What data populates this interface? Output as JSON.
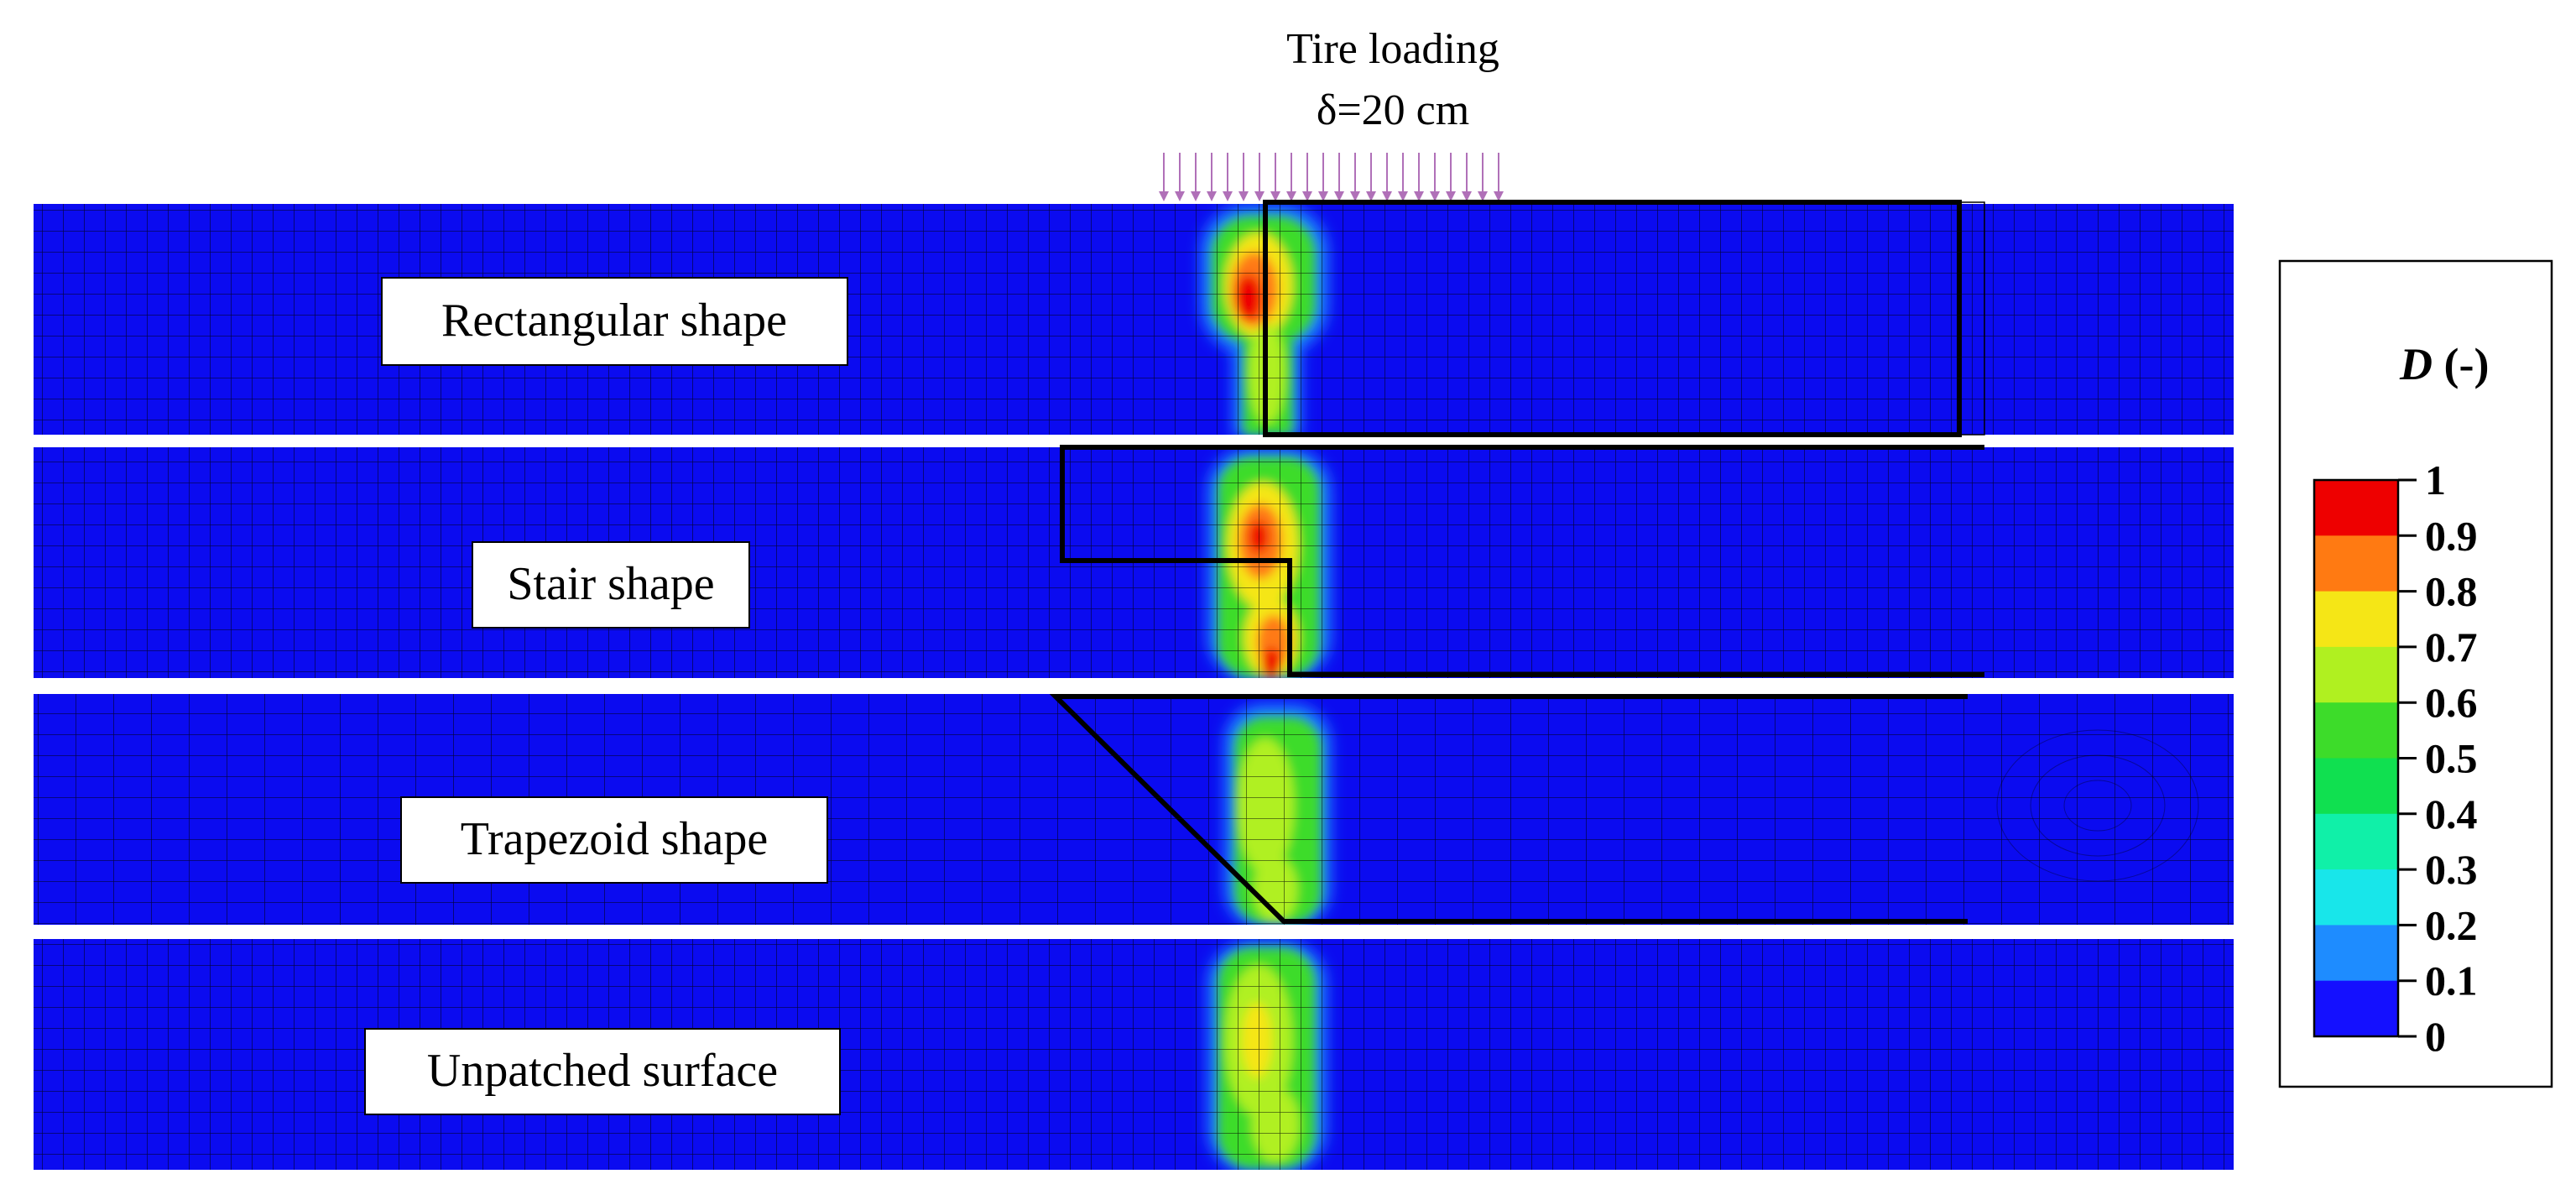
{
  "header": {
    "line1": "Tire loading",
    "line2": "δ=20 cm"
  },
  "panels": [
    {
      "label": "Rectangular shape"
    },
    {
      "label": "Stair shape"
    },
    {
      "label": "Trapezoid shape"
    },
    {
      "label": "Unpatched surface"
    }
  ],
  "legend": {
    "title_var": "D",
    "title_unit": " (-)",
    "ticks": [
      "1",
      "0.9",
      "0.8",
      "0.7",
      "0.6",
      "0.5",
      "0.4",
      "0.3",
      "0.2",
      "0.1",
      "0"
    ],
    "colors": [
      "#ee0000",
      "#ff7a12",
      "#f5e616",
      "#b0f020",
      "#3ddc2a",
      "#10e050",
      "#10f0a8",
      "#18e6ea",
      "#1e8cff",
      "#1410ff"
    ]
  },
  "colors": {
    "field": "#0b0bf0",
    "mesh": "#000000"
  }
}
